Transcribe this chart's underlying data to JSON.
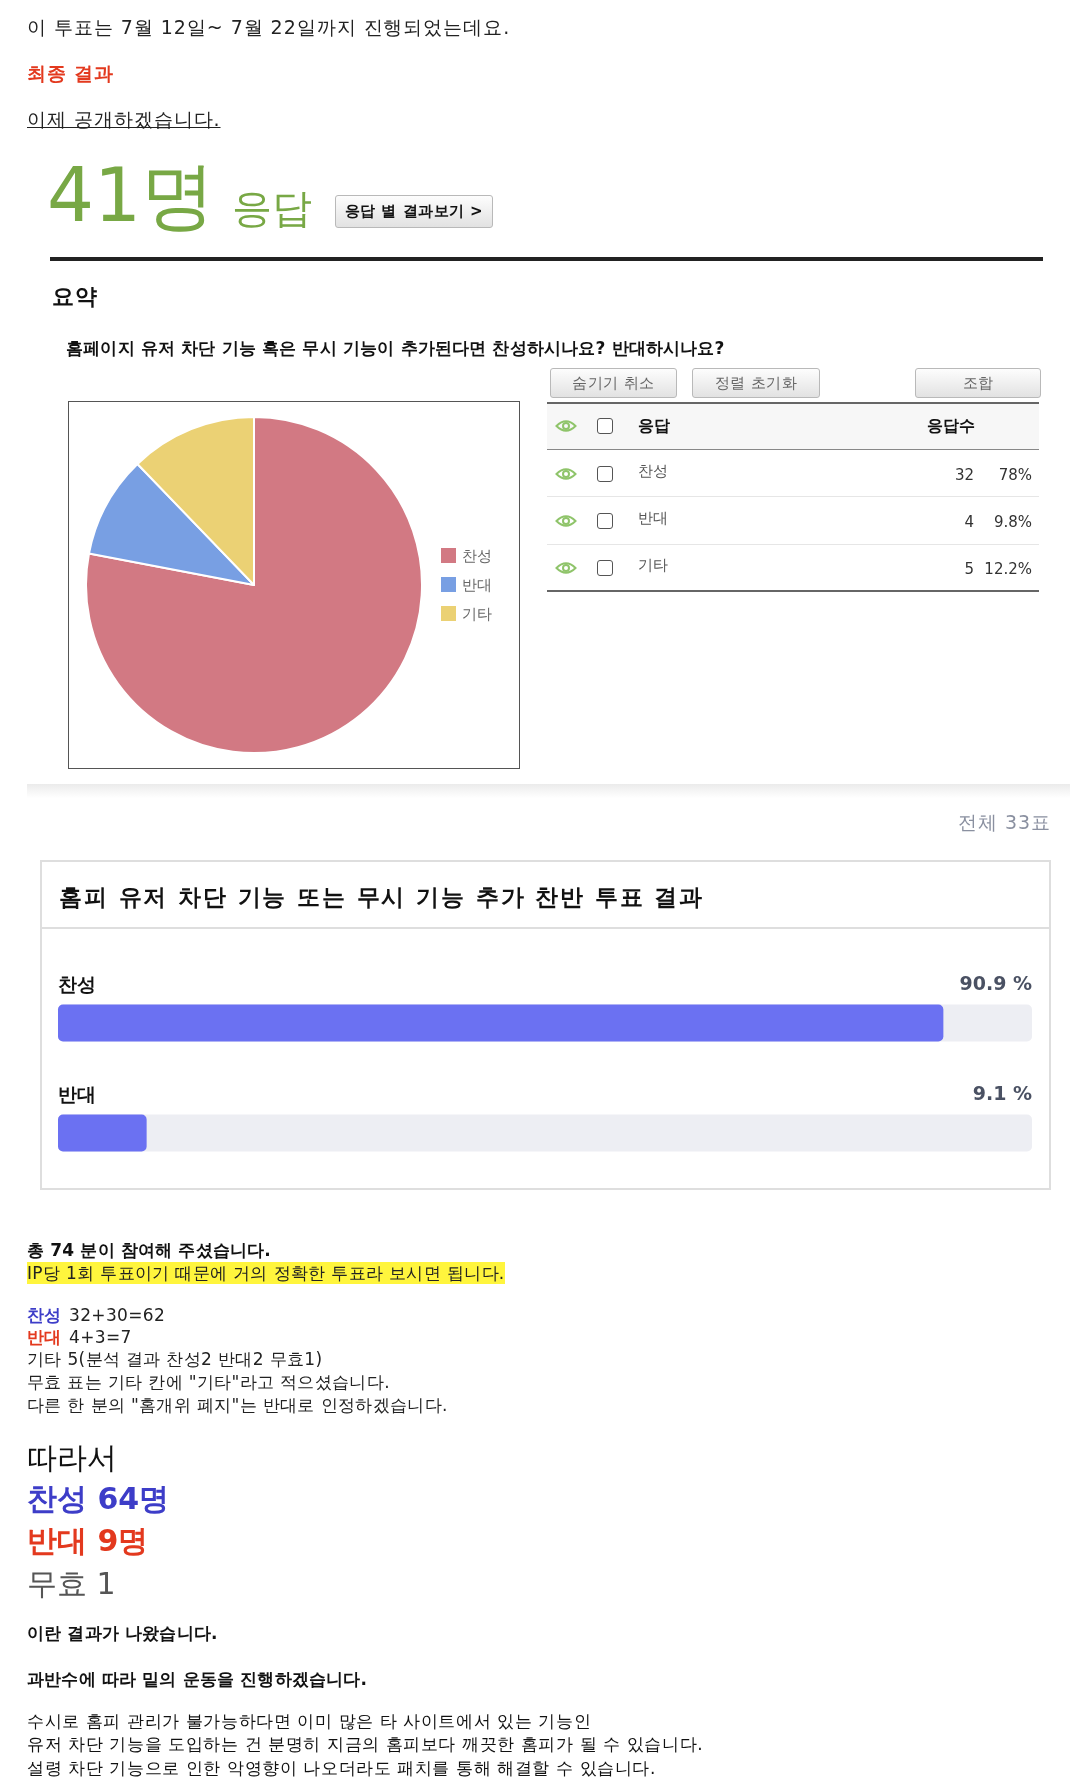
{
  "chart_data": [
    {
      "type": "pie",
      "title": "홈페이지 유저 차단 기능 혹은 무시 기능이 추가된다면 찬성하시나요? 반대하시나요?",
      "annotations": [
        "이 투표는 7월 12일~ 7월 22일까지 진행되었는데요.",
        "최종 결과",
        "이제 공개하겠습니다.",
        "41명",
        "응답",
        "응답 별 결과보기 >",
        "요약"
      ],
      "categories": [
        "찬성",
        "반대",
        "기타"
      ],
      "values": [
        78,
        9.8,
        12.2
      ],
      "colors": [
        "#d27983",
        "#789fe3",
        "#ebd174"
      ],
      "legend": "right"
    },
    {
      "type": "other",
      "annotations": [
        "숨기기 취소",
        "정렬 초기화",
        "조합",
        "응답",
        "응답수",
        "찬성",
        "32",
        "78%",
        "반대",
        "4",
        "9.8%",
        "기타",
        "5",
        "12.2%"
      ]
    },
    {
      "type": "bar",
      "orientation": "horizontal",
      "title": "홈피 유저 차단 기능 또는 무시 기능 추가 찬반 투표 결과",
      "annotations": [
        "전체 33표",
        "총 74 분이 참여해 주셨습니다.",
        "IP당 1회 투표이기 때문에 거의 정확한 투표라 보시면 됩니다.",
        "찬성",
        "32+30=62",
        "반대",
        "4+3=7",
        "기타 5(분석 결과 찬성2 반대2 무효1)",
        "무효 표는 기타 칸에 \"기타\"라고 적으셨습니다.",
        "다른 한 분의 \"홈개위 폐지\"는 반대로 인정하겠습니다.",
        "따라서",
        "찬성 64명",
        "반대 9명",
        "무효 1",
        "이란 결과가 나왔습니다.",
        "과반수에 따라 밑의 운동을 진행하겠습니다.",
        "수시로 홈피 관리가 불가능하다면 이미 많은 타 사이트에서 있는 기능인",
        "유저 차단 기능을 도입하는 건 분명히 지금의 홈피보다 깨끗한 홈피가 될 수 있습니다.",
        "설령 차단 기능으로 인한 악영향이 나오더라도 패치를 통해 해결할 수 있습니다."
      ],
      "categories": [
        "찬성",
        "반대"
      ],
      "values": [
        90.9,
        9.1
      ],
      "value_labels": [
        "90.9 %",
        "9.1 %"
      ],
      "color": "#6b71f2",
      "xlim": [
        0,
        100
      ],
      "tick_labels": "y"
    }
  ]
}
